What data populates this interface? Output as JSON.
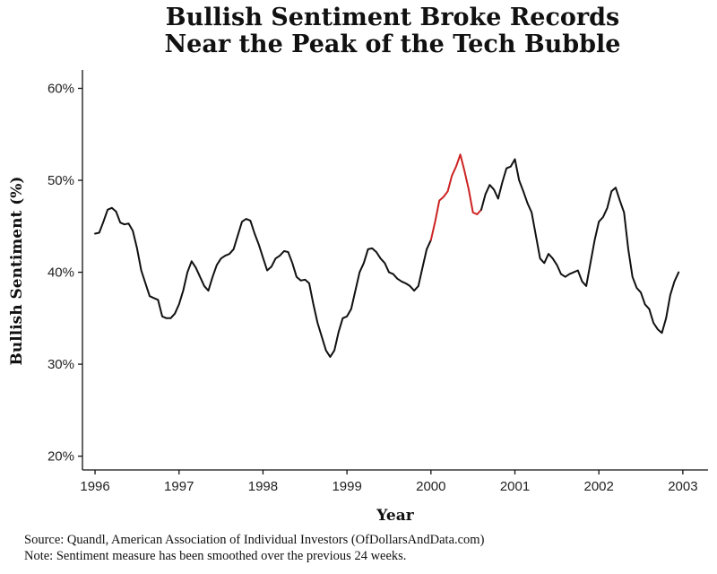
{
  "chart_data": {
    "type": "line",
    "title_lines": [
      "Bullish Sentiment Broke Records",
      "Near the Peak of the Tech Bubble"
    ],
    "xlabel": "Year",
    "ylabel": "Bullish Sentiment (%)",
    "xlim": [
      1995.85,
      2003.3
    ],
    "ylim": [
      18.5,
      62
    ],
    "x_ticks": [
      1996,
      1997,
      1998,
      1999,
      2000,
      2001,
      2002,
      2003
    ],
    "x_tick_labels": [
      "1996",
      "1997",
      "1998",
      "1999",
      "2000",
      "2001",
      "2002",
      "2003"
    ],
    "y_ticks": [
      20,
      30,
      40,
      50,
      60
    ],
    "y_tick_labels": [
      "20%",
      "30%",
      "40%",
      "50%",
      "60%"
    ],
    "grid": false,
    "series": [
      {
        "color": "#111111",
        "x": [
          1996.0,
          1996.05,
          1996.1,
          1996.15,
          1996.2,
          1996.25,
          1996.3,
          1996.35,
          1996.4,
          1996.45,
          1996.5,
          1996.55,
          1996.6,
          1996.65,
          1996.7,
          1996.75,
          1996.8,
          1996.85,
          1996.9,
          1996.95,
          1997.0,
          1997.05,
          1997.1,
          1997.15,
          1997.2,
          1997.25,
          1997.3,
          1997.35,
          1997.4,
          1997.45,
          1997.5,
          1997.55,
          1997.6,
          1997.65,
          1997.7,
          1997.75,
          1997.8,
          1997.85,
          1997.9,
          1997.95,
          1998.0,
          1998.05,
          1998.1,
          1998.15,
          1998.2,
          1998.25,
          1998.3,
          1998.35,
          1998.4,
          1998.45,
          1998.5,
          1998.55,
          1998.6,
          1998.65,
          1998.7,
          1998.75,
          1998.8,
          1998.85,
          1998.9,
          1998.95,
          1999.0,
          1999.05,
          1999.1,
          1999.15,
          1999.2,
          1999.25,
          1999.3,
          1999.35,
          1999.4,
          1999.45,
          1999.5,
          1999.55,
          1999.6,
          1999.65,
          1999.7,
          1999.75,
          1999.8,
          1999.85,
          1999.9,
          1999.95,
          2000.0
        ],
        "y": [
          44.2,
          44.3,
          45.5,
          46.8,
          47.0,
          46.6,
          45.4,
          45.2,
          45.3,
          44.5,
          42.6,
          40.2,
          38.8,
          37.4,
          37.2,
          37.0,
          35.2,
          35.0,
          35.0,
          35.5,
          36.5,
          38.0,
          40.0,
          41.2,
          40.5,
          39.5,
          38.5,
          38.0,
          39.5,
          40.8,
          41.5,
          41.8,
          42.0,
          42.5,
          44.0,
          45.5,
          45.8,
          45.6,
          44.2,
          43.0,
          41.6,
          40.2,
          40.6,
          41.5,
          41.8,
          42.3,
          42.2,
          41.0,
          39.5,
          39.1,
          39.2,
          38.8,
          36.5,
          34.5,
          33.0,
          31.5,
          30.8,
          31.5,
          33.5,
          35.0,
          35.2,
          36.0,
          38.0,
          40.0,
          41.0,
          42.5,
          42.6,
          42.2,
          41.5,
          41.0,
          40.0,
          39.8,
          39.3,
          39.0,
          38.8,
          38.5,
          38.0,
          38.5,
          40.5,
          42.5,
          43.5
        ]
      },
      {
        "color": "#cc2222",
        "x": [
          2000.0,
          2000.05,
          2000.1,
          2000.15,
          2000.2,
          2000.25,
          2000.3,
          2000.35,
          2000.4,
          2000.45,
          2000.5,
          2000.55,
          2000.6
        ],
        "y": [
          43.5,
          45.5,
          47.8,
          48.2,
          48.8,
          50.5,
          51.5,
          52.8,
          51.0,
          49.0,
          46.5,
          46.3,
          46.8
        ]
      },
      {
        "color": "#111111",
        "x": [
          2000.6,
          2000.65,
          2000.7,
          2000.75,
          2000.8,
          2000.85,
          2000.9,
          2000.95,
          2001.0,
          2001.05,
          2001.1,
          2001.15,
          2001.2,
          2001.25,
          2001.3,
          2001.35,
          2001.4,
          2001.45,
          2001.5,
          2001.55,
          2001.6,
          2001.65,
          2001.7,
          2001.75,
          2001.8,
          2001.85,
          2001.9,
          2001.95,
          2002.0,
          2002.05,
          2002.1,
          2002.15,
          2002.2,
          2002.25,
          2002.3,
          2002.35,
          2002.4,
          2002.45,
          2002.5,
          2002.55,
          2002.6,
          2002.65,
          2002.7,
          2002.75,
          2002.8,
          2002.85,
          2002.9,
          2002.95
        ],
        "y": [
          46.8,
          48.5,
          49.5,
          49.0,
          48.0,
          49.8,
          51.3,
          51.5,
          52.3,
          50.0,
          48.8,
          47.5,
          46.5,
          44.0,
          41.5,
          41.0,
          42.0,
          41.5,
          40.8,
          39.8,
          39.5,
          39.8,
          40.0,
          40.2,
          39.0,
          38.5,
          41.0,
          43.5,
          45.5,
          46.0,
          47.0,
          48.8,
          49.2,
          47.8,
          46.5,
          42.5,
          39.5,
          38.3,
          37.8,
          36.5,
          36.0,
          34.5,
          33.8,
          33.4,
          35.0,
          37.5,
          39.0,
          40.0
        ]
      }
    ]
  },
  "footnotes": [
    "Source:  Quandl, American Association of Individual Investors (OfDollarsAndData.com)",
    "Note:  Sentiment measure has been smoothed over the previous 24 weeks."
  ]
}
